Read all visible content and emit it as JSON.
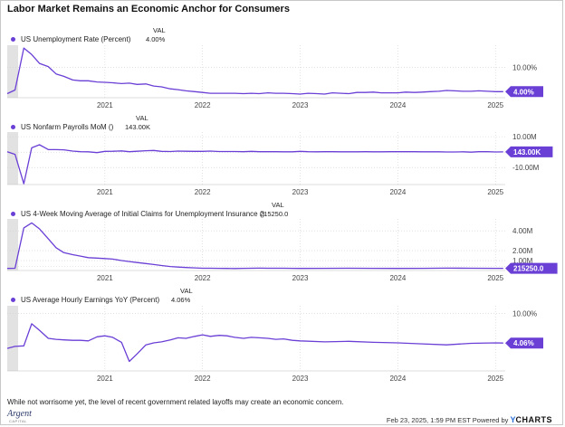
{
  "title": "Labor Market Remains an Economic Anchor for Consumers",
  "val_header": "VAL",
  "footer_note": "While not worrisome yet, the level of recent government related layoffs may create an economic concern.",
  "logo": {
    "main": "Argent",
    "sub": "CAPITAL"
  },
  "stamp": {
    "text": "Feb 23, 2025, 1:59 PM EST Powered by",
    "brand_y": "Y",
    "brand": "CHARTS"
  },
  "colors": {
    "line": "#6a3fd6",
    "shade": "#e2e2e2",
    "grid": "#cfcfcf"
  },
  "chart_data": [
    {
      "type": "line",
      "series_name": "US Unemployment Rate (Percent)",
      "value_label": "4.00%",
      "badge": "4.00%",
      "x_ticks": [
        "2021",
        "2022",
        "2023",
        "2024",
        "2025"
      ],
      "y_ticks": [
        "10.00%"
      ],
      "y_tick_values": [
        10
      ],
      "ylim": [
        2.5,
        15.5
      ],
      "x": [
        2020.0,
        2020.08,
        2020.17,
        2020.25,
        2020.33,
        2020.42,
        2020.5,
        2020.58,
        2020.67,
        2020.75,
        2020.83,
        2020.92,
        2021.0,
        2021.08,
        2021.17,
        2021.25,
        2021.33,
        2021.42,
        2021.5,
        2021.58,
        2021.67,
        2021.75,
        2021.83,
        2021.92,
        2022.0,
        2022.08,
        2022.17,
        2022.25,
        2022.33,
        2022.42,
        2022.5,
        2022.58,
        2022.67,
        2022.75,
        2022.83,
        2022.92,
        2023.0,
        2023.08,
        2023.17,
        2023.25,
        2023.33,
        2023.42,
        2023.5,
        2023.58,
        2023.67,
        2023.75,
        2023.83,
        2023.92,
        2024.0,
        2024.08,
        2024.17,
        2024.25,
        2024.33,
        2024.42,
        2024.5,
        2024.58,
        2024.67,
        2024.75,
        2024.83,
        2024.92,
        2025.0,
        2025.08
      ],
      "y": [
        3.5,
        4.4,
        14.8,
        13.2,
        11.0,
        10.2,
        8.4,
        7.8,
        6.9,
        6.7,
        6.7,
        6.4,
        6.3,
        6.2,
        6.0,
        6.1,
        5.8,
        5.9,
        5.4,
        5.2,
        4.7,
        4.5,
        4.2,
        4.0,
        3.8,
        3.6,
        3.6,
        3.6,
        3.6,
        3.5,
        3.6,
        3.5,
        3.7,
        3.6,
        3.6,
        3.5,
        3.4,
        3.6,
        3.5,
        3.4,
        3.7,
        3.6,
        3.5,
        3.8,
        3.8,
        3.9,
        3.7,
        3.7,
        3.7,
        3.9,
        3.8,
        3.9,
        4.0,
        4.1,
        4.3,
        4.2,
        4.1,
        4.1,
        4.2,
        4.1,
        4.0,
        4.0
      ]
    },
    {
      "type": "line",
      "series_name": "US Nonfarm Payrolls MoM ()",
      "value_label": "143.00K",
      "badge": "143.00K",
      "x_ticks": [
        "2021",
        "2022",
        "2023",
        "2024",
        "2025"
      ],
      "y_ticks": [
        "10.00M",
        "0.00",
        "-10.00M"
      ],
      "y_tick_values": [
        10000000,
        0,
        -10000000
      ],
      "ylim": [
        -21000000,
        13000000
      ],
      "x": [
        2020.0,
        2020.08,
        2020.17,
        2020.25,
        2020.33,
        2020.42,
        2020.5,
        2020.58,
        2020.67,
        2020.75,
        2020.83,
        2020.92,
        2021.0,
        2021.08,
        2021.17,
        2021.25,
        2021.33,
        2021.42,
        2021.5,
        2021.58,
        2021.67,
        2021.75,
        2021.83,
        2021.92,
        2022.0,
        2022.08,
        2022.17,
        2022.25,
        2022.33,
        2022.42,
        2022.5,
        2022.58,
        2022.67,
        2022.75,
        2022.83,
        2022.92,
        2023.0,
        2023.08,
        2023.17,
        2023.25,
        2023.33,
        2023.42,
        2023.5,
        2023.58,
        2023.67,
        2023.75,
        2023.83,
        2023.92,
        2024.0,
        2024.08,
        2024.17,
        2024.25,
        2024.33,
        2024.42,
        2024.5,
        2024.58,
        2024.67,
        2024.75,
        2024.83,
        2024.92,
        2025.0,
        2025.08
      ],
      "y": [
        300000,
        -1400000,
        -20500000,
        2800000,
        4800000,
        1700000,
        1600000,
        1500000,
        700000,
        300000,
        200000,
        -300000,
        500000,
        600000,
        800000,
        300000,
        600000,
        900000,
        1100000,
        500000,
        400000,
        700000,
        600000,
        500000,
        500000,
        700000,
        400000,
        400000,
        400000,
        300000,
        500000,
        300000,
        300000,
        300000,
        200000,
        200000,
        500000,
        300000,
        200000,
        300000,
        300000,
        200000,
        200000,
        200000,
        300000,
        200000,
        200000,
        300000,
        300000,
        300000,
        300000,
        200000,
        200000,
        200000,
        100000,
        100000,
        200000,
        0,
        300000,
        300000,
        100000,
        143000
      ]
    },
    {
      "type": "line",
      "series_name": "US 4-Week Moving Average of Initial Claims for Unemployment Insurance ()",
      "value_label": "215250.0",
      "badge": "215250.0",
      "x_ticks": [
        "2021",
        "2022",
        "2023",
        "2024",
        "2025"
      ],
      "y_ticks": [
        "4.00M",
        "2.00M",
        "1.00M",
        "400000.0"
      ],
      "y_tick_values": [
        4000000,
        2000000,
        1000000,
        400000
      ],
      "ylim": [
        0,
        5200000
      ],
      "x": [
        2020.0,
        2020.08,
        2020.17,
        2020.25,
        2020.33,
        2020.42,
        2020.5,
        2020.58,
        2020.67,
        2020.75,
        2020.83,
        2020.92,
        2021.0,
        2021.08,
        2021.17,
        2021.25,
        2021.33,
        2021.42,
        2021.5,
        2021.58,
        2021.67,
        2021.75,
        2021.83,
        2021.92,
        2022.0,
        2022.08,
        2022.17,
        2022.25,
        2022.33,
        2022.42,
        2022.5,
        2022.58,
        2022.67,
        2022.75,
        2022.83,
        2022.92,
        2023.0,
        2023.25,
        2023.5,
        2023.75,
        2024.0,
        2024.25,
        2024.5,
        2024.75,
        2025.0,
        2025.08
      ],
      "y": [
        210000,
        230000,
        4300000,
        4800000,
        4200000,
        3200000,
        2300000,
        1800000,
        1600000,
        1450000,
        1300000,
        1250000,
        1200000,
        1150000,
        1000000,
        900000,
        800000,
        700000,
        600000,
        500000,
        400000,
        350000,
        300000,
        260000,
        230000,
        225000,
        215000,
        210000,
        205000,
        215000,
        230000,
        240000,
        225000,
        225000,
        230000,
        220000,
        210000,
        215000,
        230000,
        215000,
        210000,
        215000,
        235000,
        225000,
        220000,
        215250
      ]
    },
    {
      "type": "line",
      "series_name": "US Average Hourly Earnings YoY (Percent)",
      "value_label": "4.06%",
      "badge": "4.06%",
      "x_ticks": [
        "2021",
        "2022",
        "2023",
        "2024",
        "2025"
      ],
      "y_ticks": [
        "10.00%"
      ],
      "y_tick_values": [
        10
      ],
      "ylim": [
        -1.5,
        11.5
      ],
      "x": [
        2020.0,
        2020.08,
        2020.17,
        2020.25,
        2020.33,
        2020.42,
        2020.5,
        2020.58,
        2020.67,
        2020.75,
        2020.83,
        2020.92,
        2021.0,
        2021.08,
        2021.17,
        2021.25,
        2021.33,
        2021.42,
        2021.5,
        2021.58,
        2021.67,
        2021.75,
        2021.83,
        2021.92,
        2022.0,
        2022.08,
        2022.17,
        2022.25,
        2022.33,
        2022.42,
        2022.5,
        2022.58,
        2022.67,
        2022.75,
        2022.83,
        2022.92,
        2023.0,
        2023.25,
        2023.5,
        2023.75,
        2024.0,
        2024.25,
        2024.5,
        2024.75,
        2025.0,
        2025.08
      ],
      "y": [
        3.0,
        3.4,
        3.5,
        7.9,
        6.6,
        5.0,
        4.8,
        4.7,
        4.6,
        4.6,
        4.5,
        5.3,
        5.5,
        5.2,
        4.2,
        0.4,
        1.9,
        3.7,
        4.1,
        4.3,
        4.7,
        5.1,
        5.0,
        5.4,
        5.7,
        5.4,
        5.6,
        5.5,
        5.2,
        5.0,
        5.2,
        5.1,
        5.0,
        4.8,
        4.9,
        4.6,
        4.5,
        4.3,
        4.4,
        4.2,
        4.1,
        3.9,
        3.7,
        4.0,
        4.1,
        4.06
      ]
    }
  ]
}
